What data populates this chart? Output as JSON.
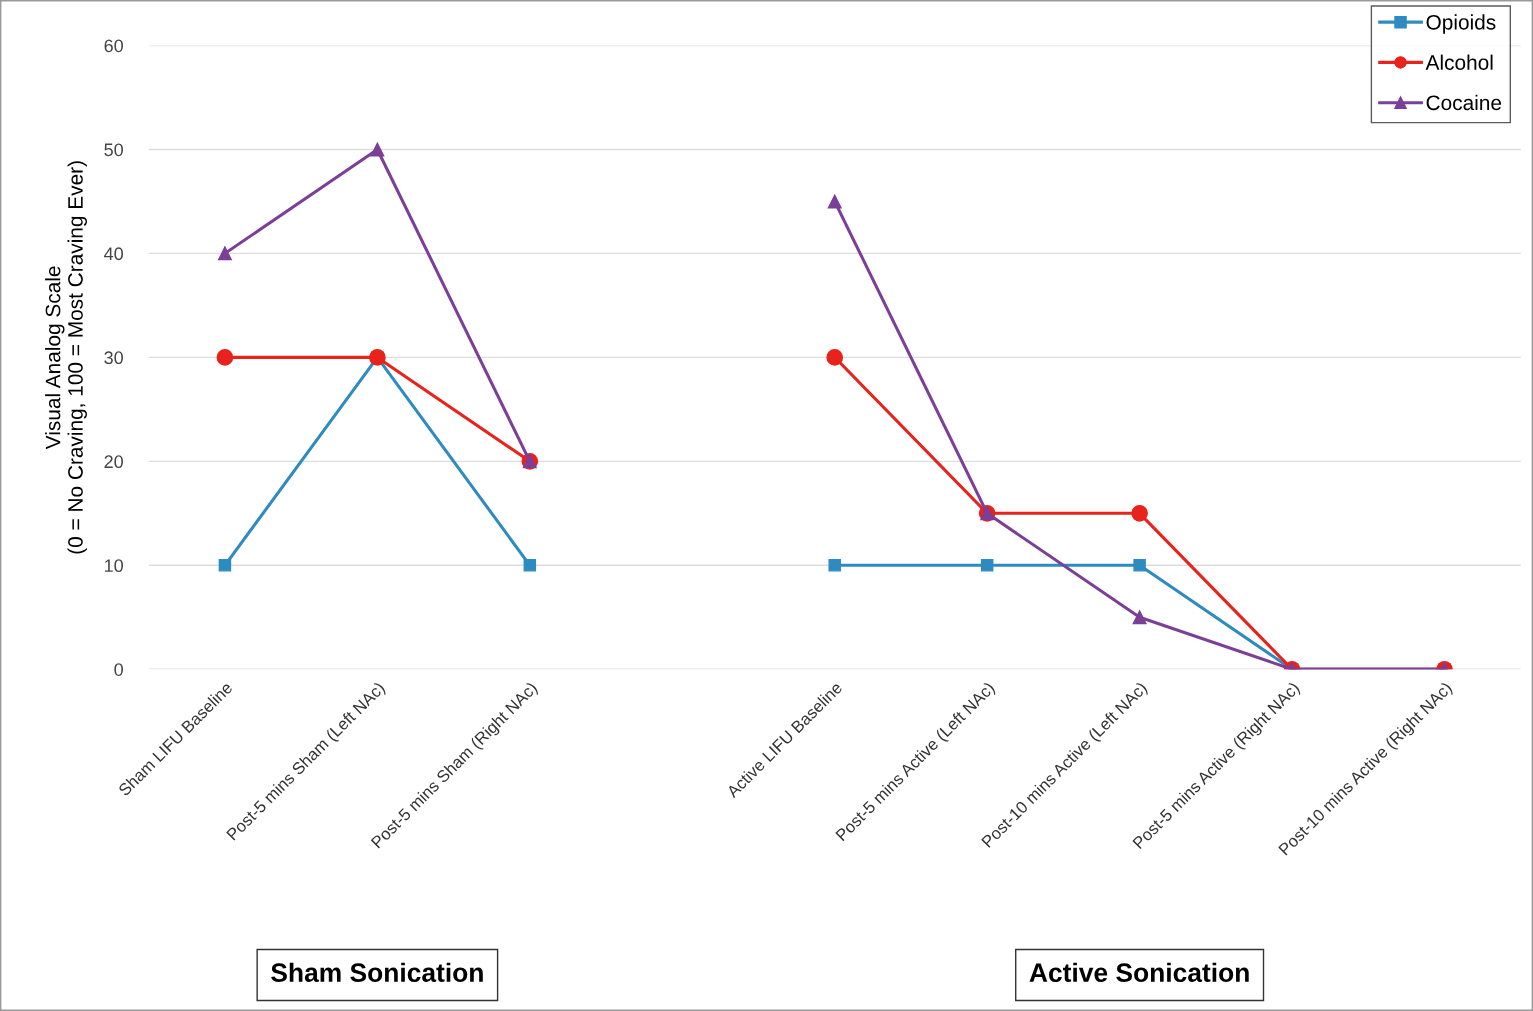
{
  "chart_data": {
    "type": "line",
    "ylabel": "Visual Analog Scale\n(0 = No Craving, 100 = Most Craving Ever)",
    "categories": [
      "Sham LIFU Baseline",
      "Post-5 mins Sham (Left NAc)",
      "Post-5 mins Sham (Right NAc)",
      null,
      "Active LIFU Baseline",
      "Post-5 mins Active (Left NAc)",
      "Post-10 mins Active (Left NAc)",
      "Post-5 mins Active (Right NAc)",
      "Post-10 mins Active (Right NAc)"
    ],
    "series": [
      {
        "name": "Opioids",
        "color": "#2e8bc0",
        "marker": "square",
        "values": [
          10,
          30,
          10,
          null,
          10,
          10,
          10,
          0,
          0
        ]
      },
      {
        "name": "Alcohol",
        "color": "#e8231b",
        "marker": "circle",
        "values": [
          30,
          30,
          20,
          null,
          30,
          15,
          15,
          0,
          0
        ]
      },
      {
        "name": "Cocaine",
        "color": "#7c3f98",
        "marker": "triangle",
        "values": [
          40,
          50,
          20,
          null,
          45,
          15,
          5,
          0,
          0
        ]
      }
    ],
    "ylim": [
      0,
      60
    ],
    "yticks": [
      0,
      10,
      20,
      30,
      40,
      50,
      60
    ],
    "grid": "y",
    "legend": "top right",
    "line_style": "solid",
    "annotations": [
      "Sham Sonication",
      "Active Sonication"
    ]
  }
}
